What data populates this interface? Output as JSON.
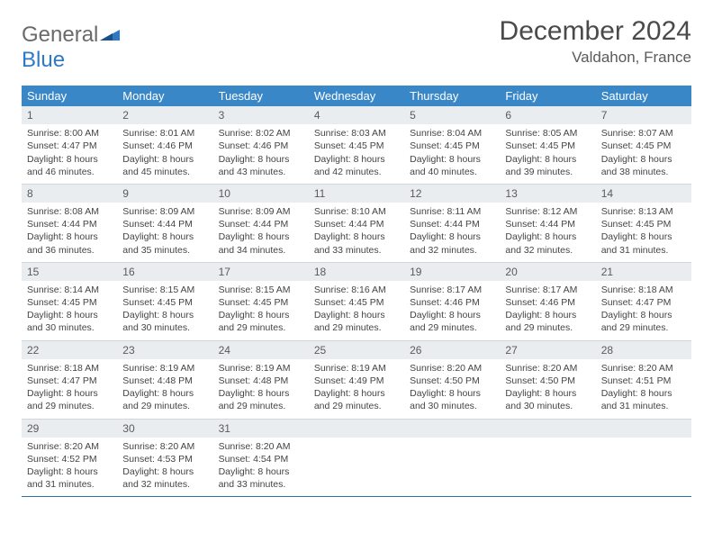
{
  "brand": {
    "part1": "General",
    "part2": "Blue"
  },
  "title": "December 2024",
  "location": "Valdahon, France",
  "colors": {
    "header_bg": "#3a87c8",
    "row_border": "#2f6fa8",
    "daynum_bg": "#e9edef",
    "text": "#444444",
    "logo_gray": "#6a6a6a",
    "logo_blue": "#2f78c4"
  },
  "weekdays": [
    "Sunday",
    "Monday",
    "Tuesday",
    "Wednesday",
    "Thursday",
    "Friday",
    "Saturday"
  ],
  "days": [
    {
      "n": 1,
      "sunrise": "8:00 AM",
      "sunset": "4:47 PM",
      "dl": "8 hours and 46 minutes."
    },
    {
      "n": 2,
      "sunrise": "8:01 AM",
      "sunset": "4:46 PM",
      "dl": "8 hours and 45 minutes."
    },
    {
      "n": 3,
      "sunrise": "8:02 AM",
      "sunset": "4:46 PM",
      "dl": "8 hours and 43 minutes."
    },
    {
      "n": 4,
      "sunrise": "8:03 AM",
      "sunset": "4:45 PM",
      "dl": "8 hours and 42 minutes."
    },
    {
      "n": 5,
      "sunrise": "8:04 AM",
      "sunset": "4:45 PM",
      "dl": "8 hours and 40 minutes."
    },
    {
      "n": 6,
      "sunrise": "8:05 AM",
      "sunset": "4:45 PM",
      "dl": "8 hours and 39 minutes."
    },
    {
      "n": 7,
      "sunrise": "8:07 AM",
      "sunset": "4:45 PM",
      "dl": "8 hours and 38 minutes."
    },
    {
      "n": 8,
      "sunrise": "8:08 AM",
      "sunset": "4:44 PM",
      "dl": "8 hours and 36 minutes."
    },
    {
      "n": 9,
      "sunrise": "8:09 AM",
      "sunset": "4:44 PM",
      "dl": "8 hours and 35 minutes."
    },
    {
      "n": 10,
      "sunrise": "8:09 AM",
      "sunset": "4:44 PM",
      "dl": "8 hours and 34 minutes."
    },
    {
      "n": 11,
      "sunrise": "8:10 AM",
      "sunset": "4:44 PM",
      "dl": "8 hours and 33 minutes."
    },
    {
      "n": 12,
      "sunrise": "8:11 AM",
      "sunset": "4:44 PM",
      "dl": "8 hours and 32 minutes."
    },
    {
      "n": 13,
      "sunrise": "8:12 AM",
      "sunset": "4:44 PM",
      "dl": "8 hours and 32 minutes."
    },
    {
      "n": 14,
      "sunrise": "8:13 AM",
      "sunset": "4:45 PM",
      "dl": "8 hours and 31 minutes."
    },
    {
      "n": 15,
      "sunrise": "8:14 AM",
      "sunset": "4:45 PM",
      "dl": "8 hours and 30 minutes."
    },
    {
      "n": 16,
      "sunrise": "8:15 AM",
      "sunset": "4:45 PM",
      "dl": "8 hours and 30 minutes."
    },
    {
      "n": 17,
      "sunrise": "8:15 AM",
      "sunset": "4:45 PM",
      "dl": "8 hours and 29 minutes."
    },
    {
      "n": 18,
      "sunrise": "8:16 AM",
      "sunset": "4:45 PM",
      "dl": "8 hours and 29 minutes."
    },
    {
      "n": 19,
      "sunrise": "8:17 AM",
      "sunset": "4:46 PM",
      "dl": "8 hours and 29 minutes."
    },
    {
      "n": 20,
      "sunrise": "8:17 AM",
      "sunset": "4:46 PM",
      "dl": "8 hours and 29 minutes."
    },
    {
      "n": 21,
      "sunrise": "8:18 AM",
      "sunset": "4:47 PM",
      "dl": "8 hours and 29 minutes."
    },
    {
      "n": 22,
      "sunrise": "8:18 AM",
      "sunset": "4:47 PM",
      "dl": "8 hours and 29 minutes."
    },
    {
      "n": 23,
      "sunrise": "8:19 AM",
      "sunset": "4:48 PM",
      "dl": "8 hours and 29 minutes."
    },
    {
      "n": 24,
      "sunrise": "8:19 AM",
      "sunset": "4:48 PM",
      "dl": "8 hours and 29 minutes."
    },
    {
      "n": 25,
      "sunrise": "8:19 AM",
      "sunset": "4:49 PM",
      "dl": "8 hours and 29 minutes."
    },
    {
      "n": 26,
      "sunrise": "8:20 AM",
      "sunset": "4:50 PM",
      "dl": "8 hours and 30 minutes."
    },
    {
      "n": 27,
      "sunrise": "8:20 AM",
      "sunset": "4:50 PM",
      "dl": "8 hours and 30 minutes."
    },
    {
      "n": 28,
      "sunrise": "8:20 AM",
      "sunset": "4:51 PM",
      "dl": "8 hours and 31 minutes."
    },
    {
      "n": 29,
      "sunrise": "8:20 AM",
      "sunset": "4:52 PM",
      "dl": "8 hours and 31 minutes."
    },
    {
      "n": 30,
      "sunrise": "8:20 AM",
      "sunset": "4:53 PM",
      "dl": "8 hours and 32 minutes."
    },
    {
      "n": 31,
      "sunrise": "8:20 AM",
      "sunset": "4:54 PM",
      "dl": "8 hours and 33 minutes."
    }
  ],
  "labels": {
    "sunrise": "Sunrise:",
    "sunset": "Sunset:",
    "daylight": "Daylight:"
  },
  "grid": {
    "start_weekday": 0,
    "rows": 5,
    "cols": 7
  }
}
